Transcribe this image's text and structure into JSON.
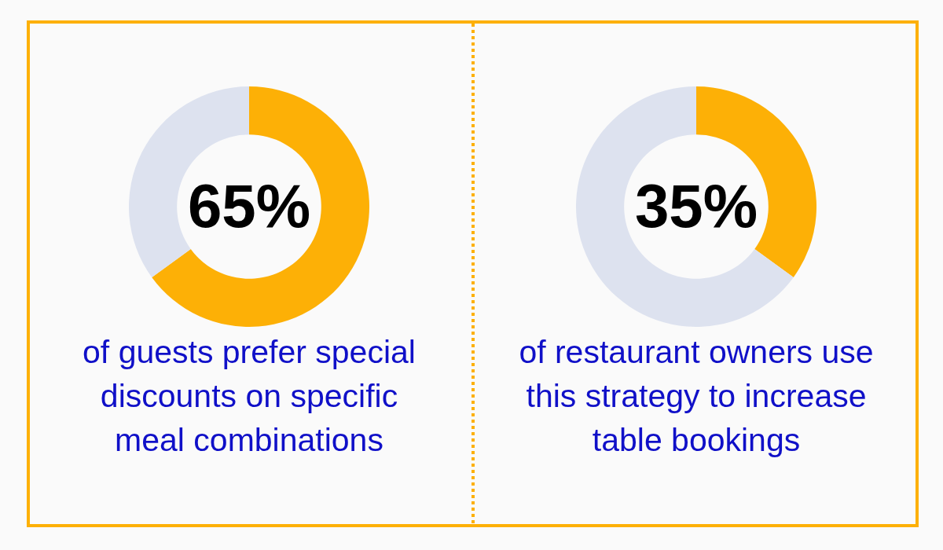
{
  "chart_data": [
    {
      "type": "donut",
      "title": "65%",
      "categories": [
        null,
        null
      ],
      "values": [
        65,
        35
      ],
      "colors": [
        "#fdb006",
        "#dde2ef"
      ],
      "annotations": [
        "of guests prefer special discounts on specific meal combinations"
      ]
    },
    {
      "type": "donut",
      "title": "35%",
      "categories": [
        null,
        null
      ],
      "values": [
        35,
        65
      ],
      "colors": [
        "#fdb006",
        "#dde2ef"
      ],
      "annotations": [
        "of restaurant owners use this strategy to increase table bookings"
      ]
    }
  ]
}
